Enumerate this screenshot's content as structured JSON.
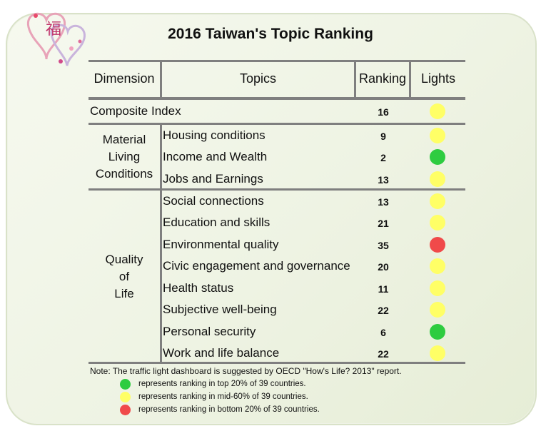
{
  "title": "2016 Taiwan's Topic Ranking",
  "colors": {
    "green": "#2ecc40",
    "yellow": "#ffff66",
    "red": "#f04a4a"
  },
  "header": {
    "dimension": "Dimension",
    "topics": "Topics",
    "ranking": "Ranking",
    "lights": "Lights"
  },
  "composite": {
    "label": "Composite Index",
    "rank": "16",
    "light": "yellow"
  },
  "dimensions": {
    "material": [
      "Material",
      "Living",
      "Conditions"
    ],
    "quality": [
      "Quality",
      "of",
      "Life"
    ]
  },
  "rows": [
    {
      "topic": "Housing conditions",
      "rank": "9",
      "light": "yellow"
    },
    {
      "topic": "Income and Wealth",
      "rank": "2",
      "light": "green"
    },
    {
      "topic": "Jobs and Earnings",
      "rank": "13",
      "light": "yellow"
    },
    {
      "topic": "Social connections",
      "rank": "13",
      "light": "yellow"
    },
    {
      "topic": "Education and skills",
      "rank": "21",
      "light": "yellow"
    },
    {
      "topic": "Environmental quality",
      "rank": "35",
      "light": "red"
    },
    {
      "topic": "Civic engagement and governance",
      "rank": "20",
      "light": "yellow"
    },
    {
      "topic": "Health status",
      "rank": "11",
      "light": "yellow"
    },
    {
      "topic": "Subjective well-being",
      "rank": "22",
      "light": "yellow"
    },
    {
      "topic": "Personal security",
      "rank": "6",
      "light": "green"
    },
    {
      "topic": "Work and life balance",
      "rank": "22",
      "light": "yellow"
    }
  ],
  "note": "Note: The traffic light dashboard is suggested by OECD \"How's Life? 2013\" report.",
  "legend": [
    {
      "light": "green",
      "text": "represents ranking in top 20% of 39 countries."
    },
    {
      "light": "yellow",
      "text": "represents ranking in mid-60% of 39 countries."
    },
    {
      "light": "red",
      "text": "represents ranking in bottom 20% of 39 countries."
    }
  ]
}
